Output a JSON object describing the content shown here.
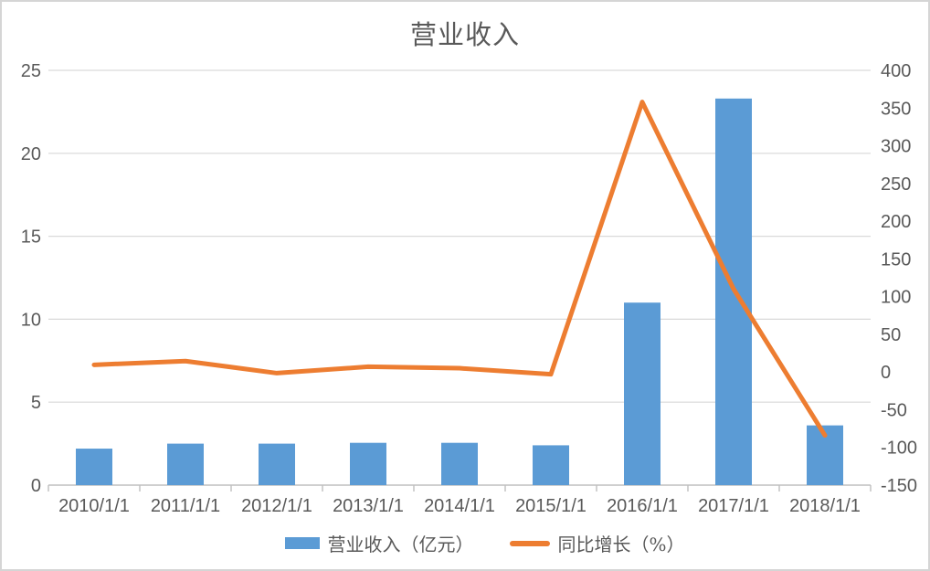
{
  "chart_data": {
    "type": "combo-bar-line",
    "title": "营业收入",
    "categories": [
      "2010/1/1",
      "2011/1/1",
      "2012/1/1",
      "2013/1/1",
      "2014/1/1",
      "2015/1/1",
      "2016/1/1",
      "2017/1/1",
      "2018/1/1"
    ],
    "series": [
      {
        "name": "营业收入（亿元）",
        "chart_type": "bar",
        "y_axis": "left",
        "color": "#5B9BD5",
        "values": [
          2.2,
          2.5,
          2.5,
          2.55,
          2.55,
          2.4,
          11.0,
          23.3,
          3.6
        ]
      },
      {
        "name": "同比增长（%）",
        "chart_type": "line",
        "y_axis": "right",
        "color": "#ED7D31",
        "values": [
          9.5,
          14.5,
          -1.5,
          7,
          5,
          -3,
          358,
          110,
          -84
        ]
      }
    ],
    "left_axis": {
      "min": 0,
      "max": 25,
      "ticks": [
        0,
        5,
        10,
        15,
        20,
        25
      ]
    },
    "right_axis": {
      "min": -150,
      "max": 400,
      "ticks": [
        400,
        350,
        300,
        250,
        200,
        150,
        100,
        50,
        0,
        -50,
        -100,
        -150
      ]
    },
    "grid": true,
    "legend_position": "bottom",
    "styles": {
      "background": "#FFFFFF",
      "border_color": "#D5D5D5",
      "grid_color": "#D9D9D9",
      "axis_line_color": "#BFBFBF",
      "text_color": "#595959",
      "title_color": "#595959"
    }
  }
}
